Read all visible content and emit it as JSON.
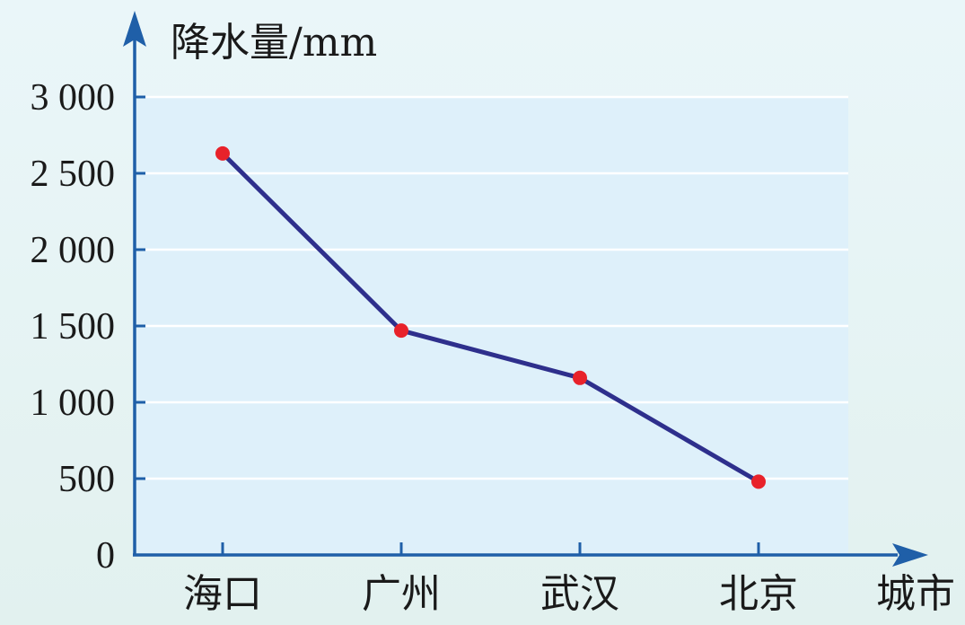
{
  "chart_data": {
    "type": "line",
    "categories": [
      "海口",
      "广州",
      "武汉",
      "北京"
    ],
    "series": [
      {
        "values": [
          2630,
          1470,
          1160,
          480
        ]
      }
    ],
    "ylabel": "降水量/mm",
    "xlabel": "城市",
    "ylim": [
      0,
      3000
    ],
    "yticks": [
      0,
      500,
      1000,
      1500,
      2000,
      2500,
      3000
    ],
    "ytick_labels": [
      "0",
      "500",
      "1 000",
      "1 500",
      "2 000",
      "2 500",
      "3 000"
    ],
    "grid": true,
    "colors": {
      "line": "#2e2f8c",
      "marker": "#e8222a",
      "axis": "#1f5fa8",
      "plot_bg": "#def0fa",
      "gridline": "#ffffff"
    }
  }
}
